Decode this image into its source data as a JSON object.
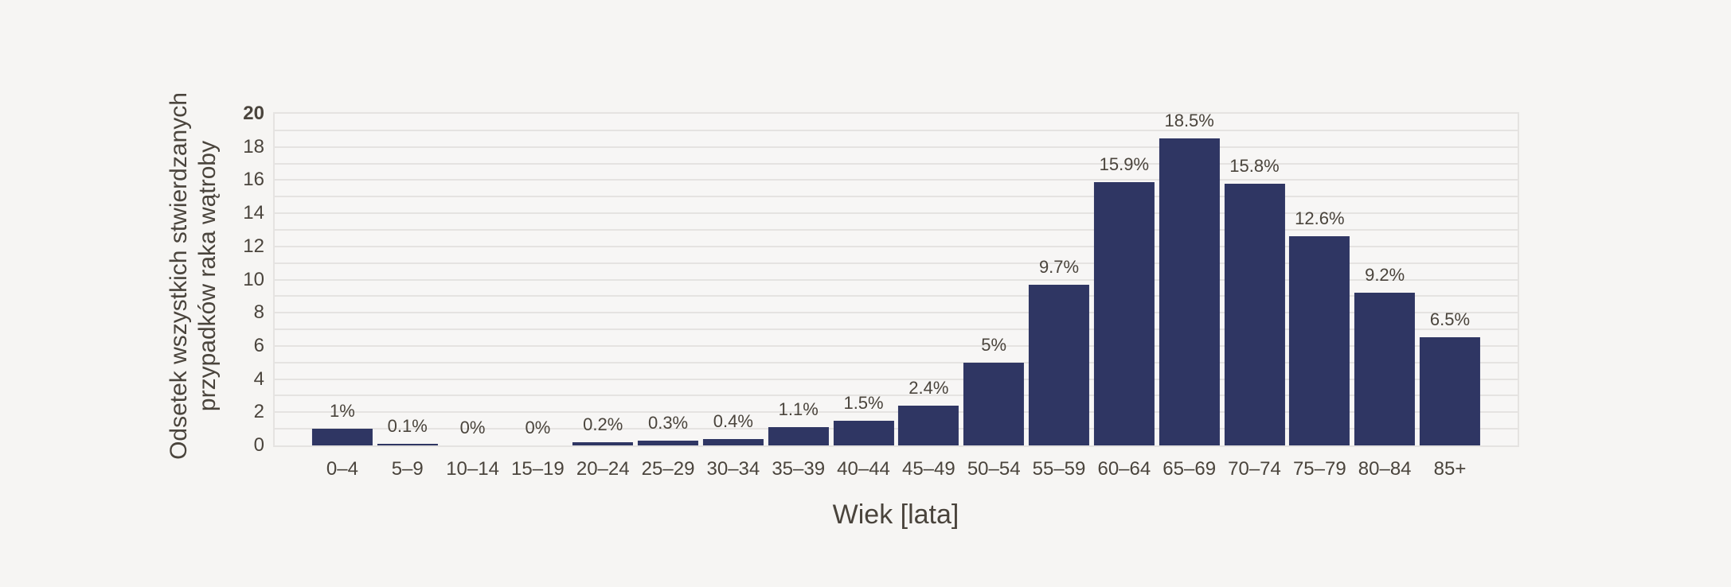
{
  "chart_data": {
    "type": "bar",
    "title": "",
    "xlabel": "Wiek [lata]",
    "ylabel": "Odsetek wszystkich stwierdzanych przypadków raka wątroby",
    "ylabel_lines": [
      "Odsetek wszystkich stwierdzanych",
      "przypadków raka wątroby"
    ],
    "categories": [
      "0–4",
      "5–9",
      "10–14",
      "15–19",
      "20–24",
      "25–29",
      "30–34",
      "35–39",
      "40–44",
      "45–49",
      "50–54",
      "55–59",
      "60–64",
      "65–69",
      "70–74",
      "75–79",
      "80–84",
      "85+"
    ],
    "values": [
      1,
      0.1,
      0,
      0,
      0.2,
      0.3,
      0.4,
      1.1,
      1.5,
      2.4,
      5,
      9.7,
      15.9,
      18.5,
      15.8,
      12.6,
      9.2,
      6.5
    ],
    "value_labels": [
      "1%",
      "0.1%",
      "0%",
      "0%",
      "0.2%",
      "0.3%",
      "0.4%",
      "1.1%",
      "1.5%",
      "2.4%",
      "5%",
      "9.7%",
      "15.9%",
      "18.5%",
      "15.8%",
      "12.6%",
      "9.2%",
      "6.5%"
    ],
    "ylim": [
      0,
      20
    ],
    "ytick_labels": [
      "0",
      "2",
      "4",
      "6",
      "8",
      "10",
      "12",
      "14",
      "16",
      "18",
      "20"
    ],
    "ytick_values": [
      0,
      2,
      4,
      6,
      8,
      10,
      12,
      14,
      16,
      18,
      20
    ],
    "grid": "horizontal gridlines every 1 unit, plot area framed",
    "legend": "none"
  },
  "colors": {
    "background": "#f6f5f3",
    "bar": "#2f3663",
    "gridline": "#e5e3e1",
    "text": "#4a443c"
  }
}
